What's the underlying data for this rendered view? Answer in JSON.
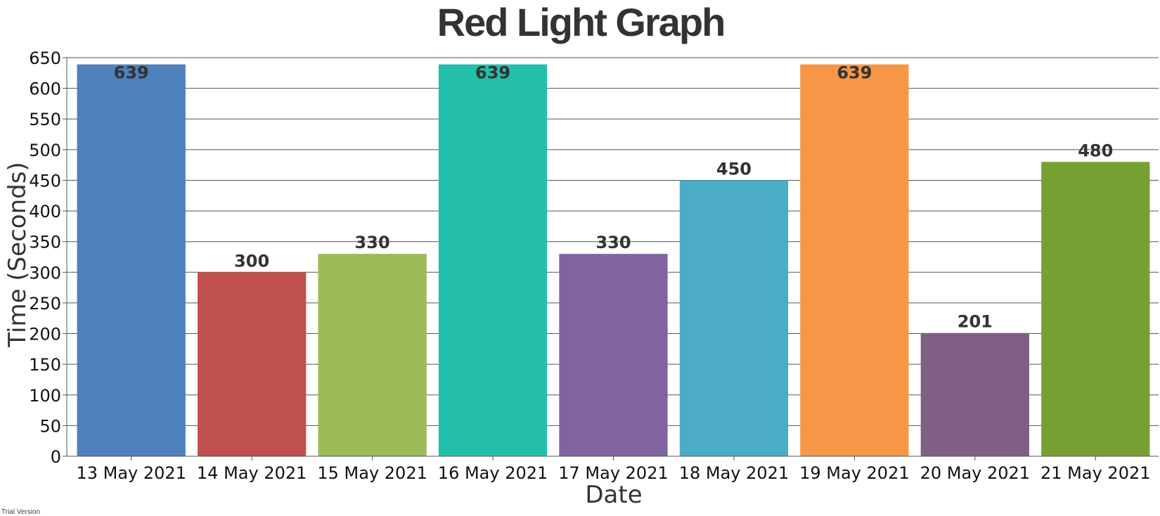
{
  "chart_data": {
    "type": "bar",
    "title": "Red Light Graph",
    "xlabel": "Date",
    "ylabel": "Time (Seconds)",
    "categories": [
      "13 May 2021",
      "14 May 2021",
      "15 May 2021",
      "16 May 2021",
      "17 May 2021",
      "18 May 2021",
      "19 May 2021",
      "20 May 2021",
      "21 May 2021"
    ],
    "values": [
      639,
      300,
      330,
      639,
      330,
      450,
      639,
      201,
      480
    ],
    "colors": [
      "#4f81bc",
      "#c0504e",
      "#9bbb58",
      "#23bfaa",
      "#8064a1",
      "#4aacc5",
      "#f79647",
      "#7f6084",
      "#77a033"
    ],
    "ylim": [
      0,
      650
    ],
    "yticks": [
      0,
      50,
      100,
      150,
      200,
      250,
      300,
      350,
      400,
      450,
      500,
      550,
      600,
      650
    ],
    "grid": true,
    "legend": "none",
    "data_labels": true
  },
  "watermark": "Trial Version"
}
